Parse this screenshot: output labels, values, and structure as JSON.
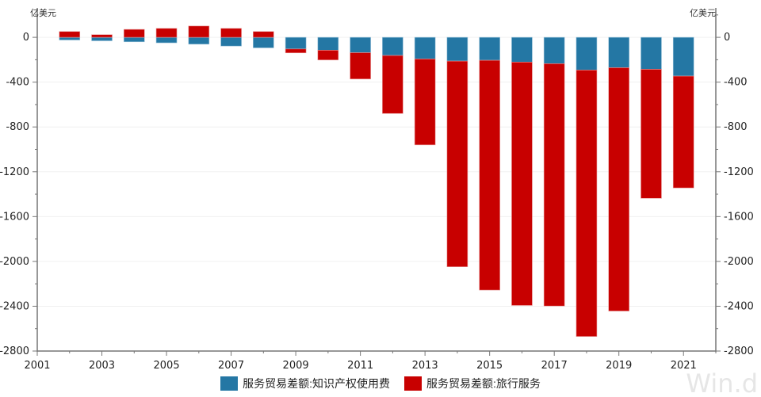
{
  "chart_data": {
    "type": "bar",
    "stacked": true,
    "unit_label_left": "亿美元",
    "unit_label_right": "亿美元",
    "categories": [
      "2002",
      "2003",
      "2004",
      "2005",
      "2006",
      "2007",
      "2008",
      "2009",
      "2010",
      "2011",
      "2012",
      "2013",
      "2014",
      "2015",
      "2016",
      "2017",
      "2018",
      "2019",
      "2020",
      "2021"
    ],
    "series": [
      {
        "name": "服务贸易差额:知识产权使用费",
        "color": "#2477a4",
        "values": [
          -24,
          -31,
          -40,
          -49,
          -61,
          -78,
          -94,
          -104,
          -115,
          -137,
          -162,
          -193,
          -212,
          -205,
          -221,
          -235,
          -292,
          -271,
          -285,
          -346
        ]
      },
      {
        "name": "服务贸易差额:旅行服务",
        "color": "#c80000",
        "values": [
          52,
          24,
          71,
          80,
          101,
          80,
          52,
          -35,
          -87,
          -235,
          -518,
          -767,
          -1836,
          -2051,
          -2172,
          -2163,
          -2378,
          -2172,
          -1152,
          -998
        ]
      }
    ],
    "x_ticks": [
      "2001",
      "2003",
      "2005",
      "2007",
      "2009",
      "2011",
      "2013",
      "2015",
      "2017",
      "2019",
      "2021"
    ],
    "y_ticks": [
      0,
      -400,
      -800,
      -1200,
      -1600,
      -2000,
      -2400,
      -2800
    ],
    "ylim": [
      -2800,
      220
    ],
    "xlim": [
      2001,
      2022
    ],
    "legend_position": "bottom",
    "grid": true,
    "watermark": "Win.d"
  }
}
